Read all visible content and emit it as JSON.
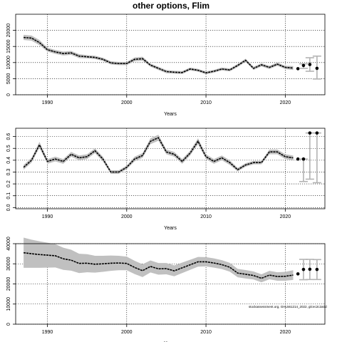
{
  "title": "other options, Flim",
  "caption": "stockassessment.org, GHL561214_2022, git:ec2c2a0d",
  "colors": {
    "band": "#c0c0c0",
    "line": "#000000",
    "pred": "#b3b3b3"
  },
  "chart_data": [
    {
      "type": "line",
      "xlabel": "Years",
      "xlim": [
        1986,
        2025
      ],
      "ylim": [
        0,
        25000
      ],
      "xticks": [
        1990,
        2000,
        2010,
        2020
      ],
      "yticks": [
        0,
        5000,
        10000,
        15000,
        20000
      ],
      "ytick_labels": [
        "0",
        "5000",
        "10000",
        "15000",
        "20000"
      ],
      "grid": true,
      "series": [
        {
          "x": [
            1987,
            1988,
            1989,
            1990,
            1991,
            1992,
            1993,
            1994,
            1995,
            1996,
            1997,
            1998,
            1999,
            2000,
            2001,
            2002,
            2003,
            2004,
            2005,
            2006,
            2007,
            2008,
            2009,
            2010,
            2011,
            2012,
            2013,
            2014,
            2015,
            2016,
            2017,
            2018,
            2019,
            2020,
            2021
          ],
          "y": [
            17800,
            17600,
            16200,
            14000,
            13300,
            12800,
            13000,
            12000,
            11800,
            11600,
            11000,
            9900,
            9700,
            9700,
            11000,
            11200,
            9200,
            8200,
            7200,
            7000,
            6900,
            8000,
            7600,
            6800,
            7300,
            8000,
            7700,
            9100,
            10700,
            8200,
            9300,
            8500,
            9500,
            8500,
            8300
          ],
          "band_half_width": [
            800,
            800,
            800,
            600,
            600,
            600,
            600,
            600,
            500,
            500,
            500,
            500,
            500,
            500,
            600,
            600,
            500,
            500,
            500,
            450,
            450,
            450,
            450,
            450,
            450,
            450,
            450,
            500,
            500,
            500,
            500,
            500,
            500,
            500,
            600
          ]
        }
      ],
      "predictions": [
        {
          "x": 2021.6,
          "y": 8100
        },
        {
          "x": 2022.3,
          "y": 9100,
          "low": 8200,
          "high": 9600
        },
        {
          "x": 2023.1,
          "y": 9400,
          "low": 7300,
          "high": 11500
        },
        {
          "x": 2024.0,
          "y": 8200,
          "low": 4900,
          "high": 12000
        }
      ]
    },
    {
      "type": "line",
      "xlabel": "Years",
      "xlim": [
        1986,
        2025
      ],
      "ylim": [
        -0.01,
        0.67
      ],
      "xticks": [
        1990,
        2000,
        2010,
        2020
      ],
      "yticks": [
        0.0,
        0.1,
        0.2,
        0.3,
        0.4,
        0.5,
        0.6
      ],
      "ytick_labels": [
        "0.0",
        "0.1",
        "0.2",
        "0.3",
        "0.4",
        "0.5",
        "0.6"
      ],
      "grid": true,
      "series": [
        {
          "x": [
            1987,
            1988,
            1989,
            1990,
            1991,
            1992,
            1993,
            1994,
            1995,
            1996,
            1997,
            1998,
            1999,
            2000,
            2001,
            2002,
            2003,
            2004,
            2005,
            2006,
            2007,
            2008,
            2009,
            2010,
            2011,
            2012,
            2013,
            2014,
            2015,
            2016,
            2017,
            2018,
            2019,
            2020,
            2021
          ],
          "y": [
            0.34,
            0.4,
            0.53,
            0.39,
            0.41,
            0.39,
            0.45,
            0.42,
            0.43,
            0.48,
            0.41,
            0.3,
            0.3,
            0.34,
            0.41,
            0.44,
            0.56,
            0.59,
            0.47,
            0.45,
            0.39,
            0.46,
            0.56,
            0.43,
            0.39,
            0.42,
            0.38,
            0.32,
            0.36,
            0.38,
            0.38,
            0.47,
            0.47,
            0.43,
            0.42
          ],
          "band_half_width": [
            0.02,
            0.02,
            0.025,
            0.02,
            0.02,
            0.02,
            0.02,
            0.02,
            0.02,
            0.02,
            0.02,
            0.015,
            0.015,
            0.015,
            0.02,
            0.02,
            0.025,
            0.025,
            0.02,
            0.02,
            0.02,
            0.02,
            0.025,
            0.02,
            0.02,
            0.02,
            0.02,
            0.015,
            0.015,
            0.015,
            0.015,
            0.02,
            0.02,
            0.02,
            0.02
          ]
        }
      ],
      "predictions": [
        {
          "x": 2021.6,
          "y": 0.41
        },
        {
          "x": 2022.3,
          "y": 0.41,
          "low": 0.22,
          "high": 0.41
        },
        {
          "x": 2023.1,
          "y": 0.63,
          "low": 0.24,
          "high": 0.63
        },
        {
          "x": 2024.0,
          "y": 0.63,
          "low": 0.21,
          "high": 0.63
        }
      ]
    },
    {
      "type": "line",
      "xlabel": "Years",
      "xlim": [
        1986,
        2025
      ],
      "ylim": [
        0,
        40000
      ],
      "xticks": [
        1990,
        2000,
        2010,
        2020
      ],
      "yticks": [
        0,
        10000,
        20000,
        30000,
        40000
      ],
      "ytick_labels": [
        "0",
        "10000",
        "20000",
        "30000",
        "40000"
      ],
      "grid": true,
      "series": [
        {
          "x": [
            1987,
            1988,
            1989,
            1990,
            1991,
            1992,
            1993,
            1994,
            1995,
            1996,
            1997,
            1998,
            1999,
            2000,
            2001,
            2002,
            2003,
            2004,
            2005,
            2006,
            2007,
            2008,
            2009,
            2010,
            2011,
            2012,
            2013,
            2014,
            2015,
            2016,
            2017,
            2018,
            2019,
            2020,
            2021
          ],
          "y": [
            35500,
            35000,
            34600,
            34300,
            34000,
            32500,
            31800,
            30200,
            30300,
            29800,
            30000,
            30300,
            30400,
            30200,
            28200,
            26600,
            28700,
            27500,
            27600,
            26500,
            28000,
            29500,
            31000,
            31000,
            30400,
            29600,
            28300,
            25400,
            24800,
            24200,
            22800,
            24400,
            23700,
            23800,
            24400
          ],
          "band_half_width": [
            7500,
            7000,
            6600,
            6200,
            5800,
            5500,
            5200,
            4800,
            4500,
            4200,
            4000,
            3800,
            3600,
            3400,
            3300,
            3200,
            3000,
            2900,
            2800,
            2700,
            2600,
            2500,
            2400,
            2300,
            2300,
            2200,
            2200,
            2100,
            2100,
            2000,
            2000,
            2100,
            2100,
            2200,
            2400
          ]
        }
      ],
      "predictions": [
        {
          "x": 2021.6,
          "y": 25000
        },
        {
          "x": 2022.3,
          "y": 27200,
          "low": 22100,
          "high": 32200
        },
        {
          "x": 2023.1,
          "y": 27300,
          "low": 22200,
          "high": 32200
        },
        {
          "x": 2024.0,
          "y": 27200,
          "low": 22200,
          "high": 32100
        }
      ]
    }
  ]
}
